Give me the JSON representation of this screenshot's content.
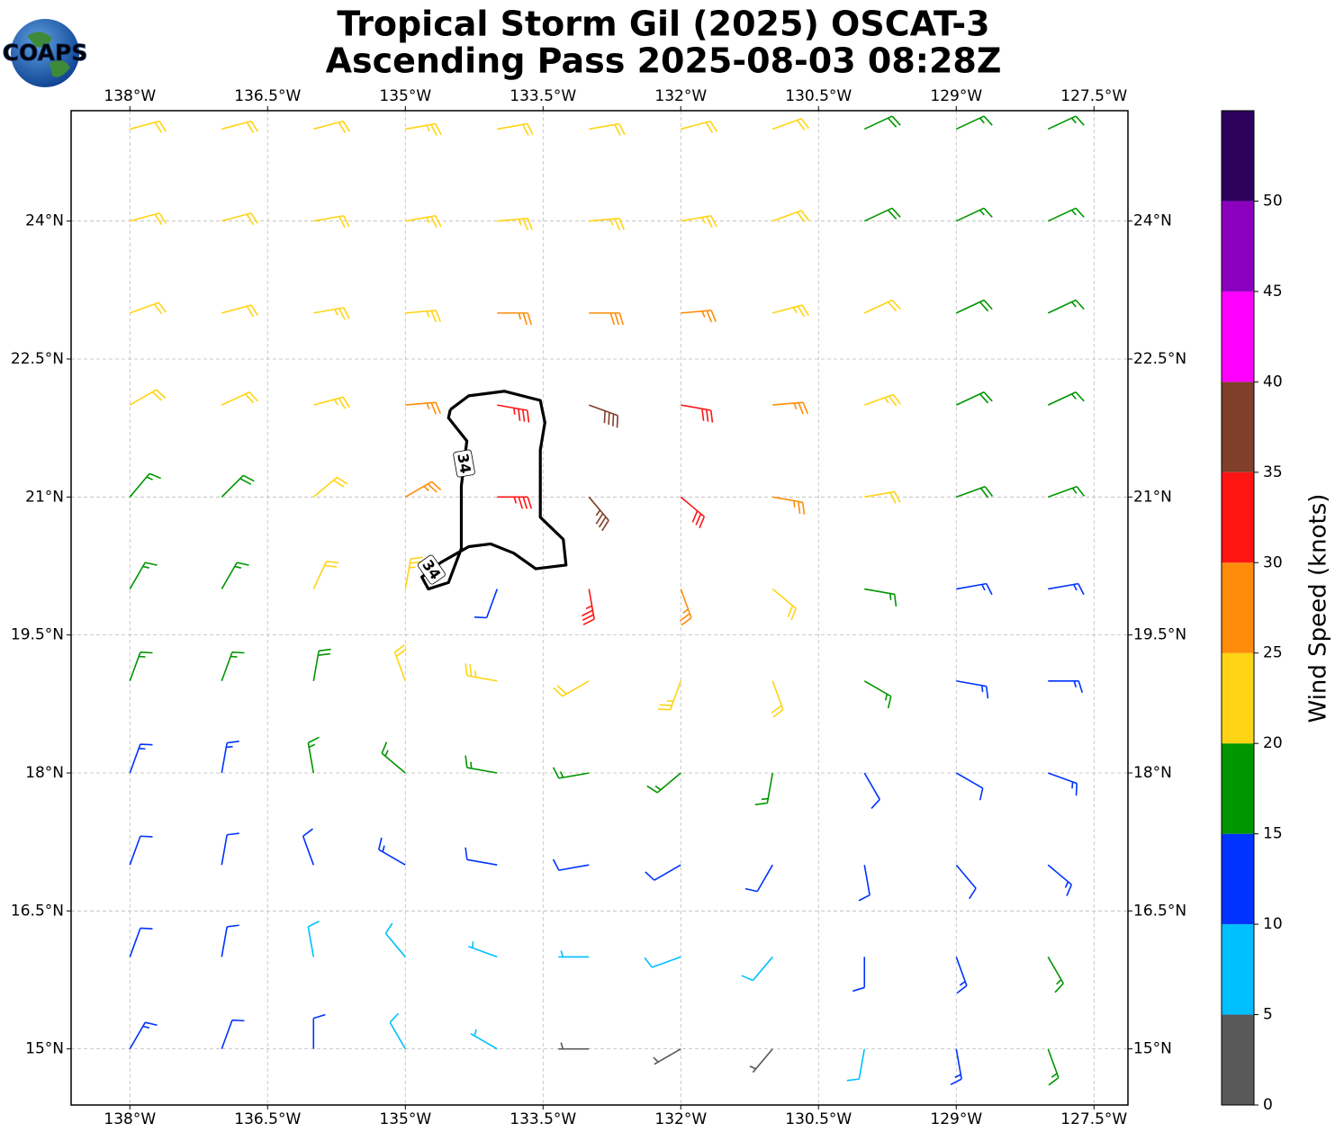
{
  "chart_data": {
    "type": "barbs",
    "logo": "COAPS",
    "title": "Tropical Storm Gil (2025) OSCAT-3",
    "subtitle": "Ascending Pass 2025-08-03 08:28Z",
    "xlim": [
      -138.64,
      -127.13
    ],
    "ylim": [
      14.39,
      25.2
    ],
    "xticks": [
      {
        "value": -138,
        "label": "138°W"
      },
      {
        "value": -136.5,
        "label": "136.5°W"
      },
      {
        "value": -135,
        "label": "135°W"
      },
      {
        "value": -133.5,
        "label": "133.5°W"
      },
      {
        "value": -132,
        "label": "132°W"
      },
      {
        "value": -130.5,
        "label": "130.5°W"
      },
      {
        "value": -129,
        "label": "129°W"
      },
      {
        "value": -127.5,
        "label": "127.5°W"
      }
    ],
    "yticks": [
      {
        "value": 15,
        "label": "15°N"
      },
      {
        "value": 16.5,
        "label": "16.5°N"
      },
      {
        "value": 18,
        "label": "18°N"
      },
      {
        "value": 19.5,
        "label": "19.5°N"
      },
      {
        "value": 21,
        "label": "21°N"
      },
      {
        "value": 22.5,
        "label": "22.5°N"
      },
      {
        "value": 24,
        "label": "24°N"
      }
    ],
    "grid": true,
    "lon": [
      -138,
      -137,
      -136,
      -135,
      -134,
      -133,
      -132,
      -131,
      -130,
      -129,
      -128
    ],
    "lat": [
      25,
      24,
      23,
      22,
      21,
      20,
      19,
      18,
      17,
      16,
      15
    ],
    "speed": [
      [
        22,
        22,
        22,
        23,
        22,
        21,
        20,
        21,
        18,
        17,
        17
      ],
      [
        22,
        22,
        22,
        23,
        24,
        24,
        23,
        22,
        19,
        17,
        17
      ],
      [
        22,
        22,
        23,
        24,
        27,
        28,
        26,
        23,
        21,
        18,
        17
      ],
      [
        21,
        22,
        23,
        27,
        33,
        38,
        32,
        27,
        23,
        19,
        17
      ],
      [
        17,
        19,
        22,
        27,
        33,
        37,
        32,
        26,
        22,
        18,
        17
      ],
      [
        16,
        17,
        20,
        23,
        12,
        33,
        27,
        21,
        16,
        14,
        14
      ],
      [
        16,
        16,
        18,
        22,
        23,
        22,
        24,
        21,
        16,
        13,
        13
      ],
      [
        14,
        14,
        16,
        17,
        16,
        15,
        17,
        16,
        12,
        10,
        13
      ],
      [
        12,
        12,
        12,
        13,
        12,
        11,
        12,
        12,
        10,
        11,
        14
      ],
      [
        12,
        11,
        9,
        8,
        7,
        7,
        8,
        9,
        10,
        13,
        15
      ],
      [
        13,
        12,
        10,
        8,
        5,
        3,
        3,
        4,
        8,
        14,
        17
      ]
    ],
    "direction": [
      [
        75,
        75,
        75,
        80,
        80,
        80,
        75,
        70,
        65,
        65,
        65
      ],
      [
        75,
        75,
        80,
        80,
        85,
        85,
        80,
        70,
        65,
        65,
        65
      ],
      [
        70,
        75,
        80,
        85,
        90,
        90,
        85,
        75,
        65,
        65,
        65
      ],
      [
        60,
        65,
        75,
        85,
        100,
        110,
        100,
        85,
        70,
        65,
        65
      ],
      [
        40,
        45,
        50,
        60,
        90,
        140,
        130,
        100,
        80,
        70,
        70
      ],
      [
        30,
        30,
        25,
        10,
        200,
        170,
        160,
        130,
        100,
        80,
        80
      ],
      [
        20,
        20,
        10,
        340,
        280,
        240,
        200,
        160,
        120,
        100,
        90
      ],
      [
        20,
        10,
        350,
        310,
        280,
        260,
        230,
        190,
        150,
        120,
        110
      ],
      [
        20,
        10,
        340,
        300,
        280,
        260,
        240,
        210,
        170,
        140,
        130
      ],
      [
        20,
        10,
        350,
        320,
        290,
        270,
        250,
        220,
        180,
        160,
        150
      ],
      [
        30,
        20,
        360,
        330,
        300,
        270,
        240,
        220,
        190,
        170,
        160
      ]
    ],
    "contour": {
      "level": 34,
      "lon": [
        -134.51,
        -134.31,
        -133.92,
        -133.53,
        -133.48,
        -133.53,
        -133.53,
        -133.28,
        -133.25,
        -133.58,
        -133.82,
        -134.07,
        -134.31,
        -134.61,
        -134.82,
        -134.75,
        -134.53,
        -134.39,
        -134.39,
        -134.33,
        -134.53,
        -134.51
      ],
      "lat": [
        21.95,
        22.1,
        22.15,
        22.05,
        21.81,
        21.51,
        20.78,
        20.54,
        20.26,
        20.22,
        20.39,
        20.49,
        20.46,
        20.29,
        20.13,
        20.0,
        20.07,
        20.44,
        21.12,
        21.61,
        21.86,
        21.95
      ]
    },
    "colorbar": {
      "label": "Wind Speed (knots)",
      "bounds": [
        0,
        5,
        10,
        15,
        20,
        25,
        30,
        35,
        40,
        45,
        50,
        55
      ],
      "colors": [
        "#595959",
        "#00bfff",
        "#0033ff",
        "#009600",
        "#ffd414",
        "#ff8c0a",
        "#ff1414",
        "#7f3f2a",
        "#ff00ff",
        "#8b00bf",
        "#2d005c"
      ],
      "ticks": [
        0,
        5,
        10,
        15,
        20,
        25,
        30,
        35,
        40,
        45,
        50
      ]
    }
  }
}
